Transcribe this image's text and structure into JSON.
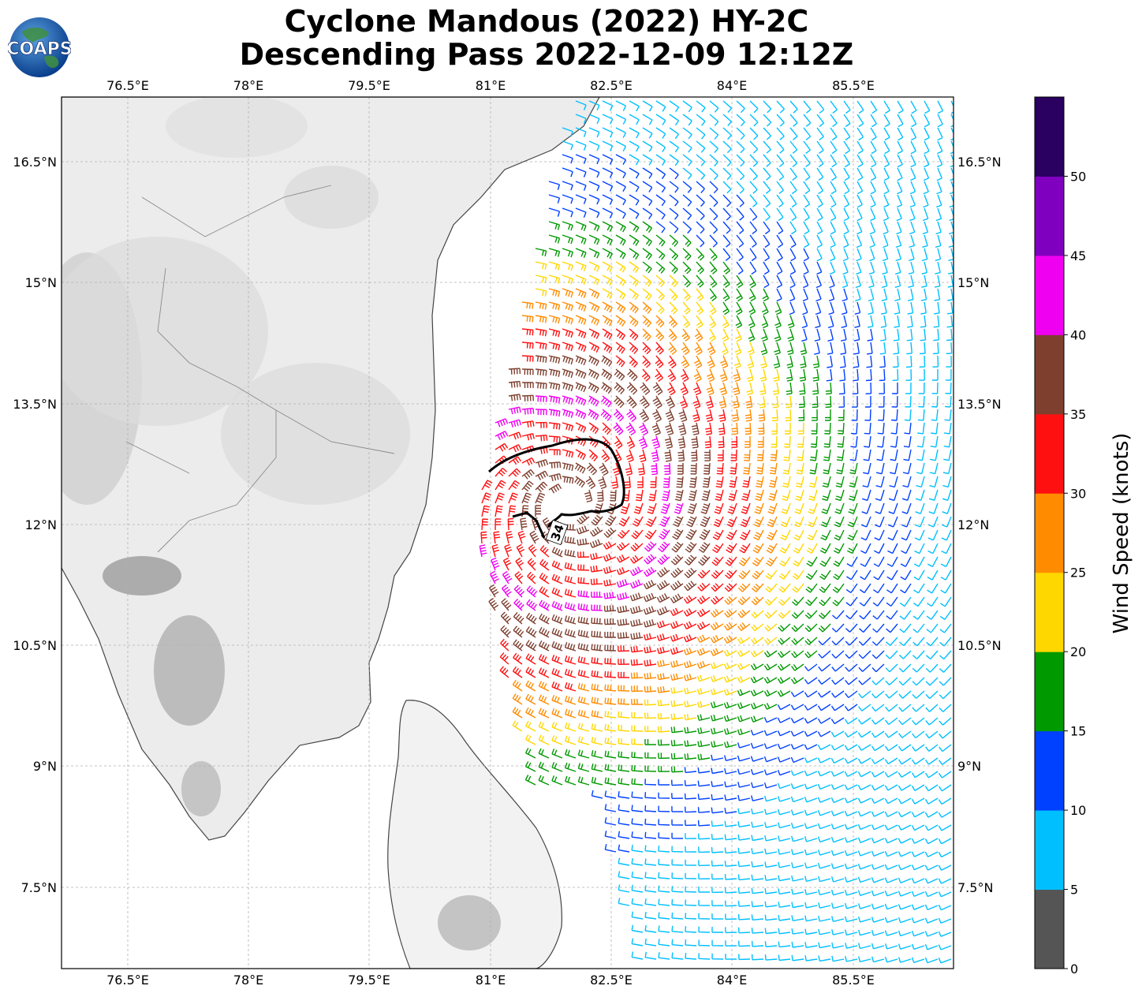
{
  "logo": {
    "text": "COAPS"
  },
  "title": {
    "line1": "Cyclone Mandous (2022) HY-2C",
    "line2": "Descending Pass 2022-12-09 12:12Z"
  },
  "map": {
    "lon_ticks": [
      "76.5°E",
      "78°E",
      "79.5°E",
      "81°E",
      "82.5°E",
      "84°E",
      "85.5°E"
    ],
    "lat_ticks": [
      "16.5°N",
      "15°N",
      "13.5°N",
      "12°N",
      "10.5°N",
      "9°N",
      "7.5°N"
    ],
    "contour_label": "34",
    "colors": {
      "land_shade": "#d6d6d6",
      "coastline": "#444444",
      "grid": "#b0b0b0",
      "contour": "#000000"
    }
  },
  "colorbar": {
    "label": "Wind Speed (knots)",
    "ticks": [
      "0",
      "5",
      "10",
      "15",
      "20",
      "25",
      "30",
      "35",
      "40",
      "45",
      "50"
    ],
    "colors": [
      "#555555",
      "#00bfff",
      "#0040ff",
      "#009900",
      "#ffd700",
      "#ff8c00",
      "#ff1010",
      "#7f3f2f",
      "#f000f0",
      "#8000c0",
      "#2a0060"
    ]
  }
}
